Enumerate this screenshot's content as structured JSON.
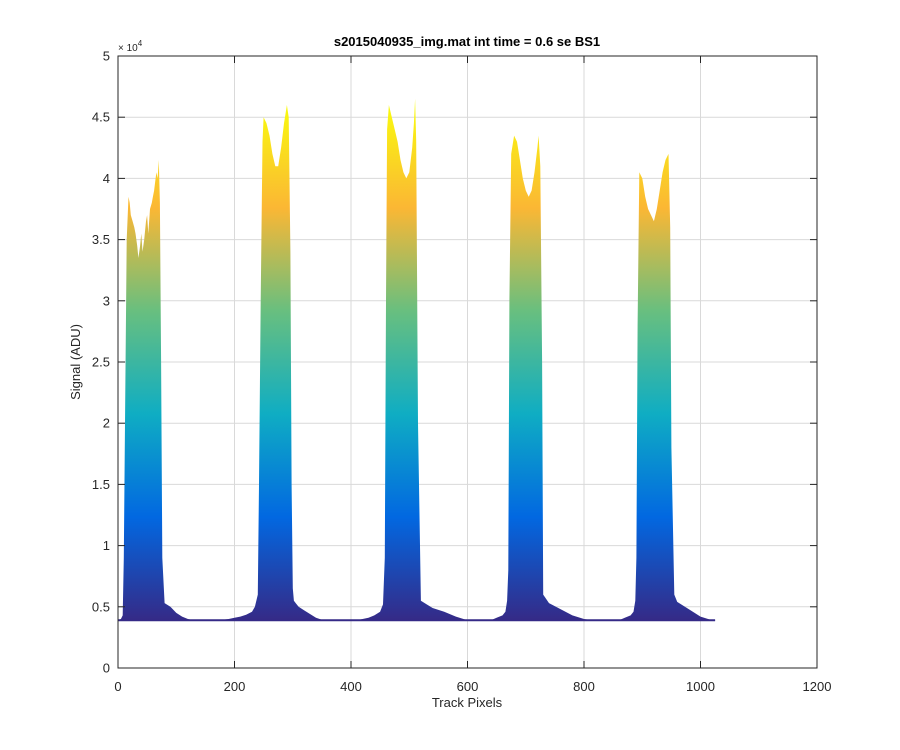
{
  "chart_data": {
    "type": "area",
    "title": "s2015040935_img.mat int time = 0.6 se   BS1",
    "xlabel": "Track Pixels",
    "ylabel": "Signal (ADU)",
    "xlim": [
      0,
      1200
    ],
    "ylim": [
      0,
      50000
    ],
    "xticks": [
      0,
      200,
      400,
      600,
      800,
      1000,
      1200
    ],
    "yticks": [
      0,
      5000,
      10000,
      15000,
      20000,
      25000,
      30000,
      35000,
      40000,
      45000,
      50000
    ],
    "ytick_labels": [
      "0",
      "0.5",
      "1",
      "1.5",
      "2",
      "2.5",
      "3",
      "3.5",
      "4",
      "4.5",
      "5"
    ],
    "y_exponent_label": "× 10",
    "y_exponent_power": "4",
    "grid": true,
    "baseline": 3900,
    "colormap": [
      "#352a87",
      "#0268e1",
      "#0fadc3",
      "#68bf7f",
      "#fbb734",
      "#f9fb0e"
    ],
    "series": [
      {
        "x": [
          0,
          5,
          8,
          10,
          12,
          15,
          18,
          20,
          22,
          25,
          28,
          30,
          33,
          35,
          38,
          40,
          42,
          45,
          48,
          50,
          52,
          55,
          58,
          60,
          62,
          64,
          66,
          68,
          70,
          72,
          74,
          76,
          80,
          90,
          100,
          110,
          120,
          130,
          140,
          150,
          160,
          170,
          180,
          190,
          200,
          210,
          220,
          230,
          235,
          240,
          242,
          245,
          248,
          250,
          255,
          260,
          265,
          270,
          275,
          280,
          285,
          290,
          293,
          296,
          298,
          300,
          302,
          305,
          310,
          320,
          330,
          340,
          350,
          360,
          370,
          380,
          390,
          400,
          410,
          420,
          430,
          440,
          450,
          455,
          458,
          460,
          462,
          465,
          470,
          475,
          480,
          485,
          490,
          495,
          500,
          505,
          508,
          510,
          512,
          515,
          520,
          530,
          540,
          560,
          580,
          600,
          620,
          640,
          650,
          660,
          665,
          668,
          670,
          672,
          675,
          680,
          685,
          690,
          695,
          700,
          705,
          710,
          715,
          720,
          722,
          725,
          728,
          730,
          740,
          760,
          780,
          800,
          820,
          840,
          860,
          870,
          880,
          885,
          888,
          890,
          892,
          895,
          900,
          905,
          910,
          915,
          920,
          925,
          930,
          935,
          940,
          945,
          948,
          950,
          955,
          960,
          980,
          1000,
          1020,
          1025
        ],
        "y": [
          3900,
          4000,
          4300,
          9000,
          20000,
          35000,
          38500,
          38000,
          37000,
          36500,
          36000,
          35500,
          34500,
          33500,
          34500,
          35500,
          34000,
          35000,
          36500,
          37000,
          35500,
          37500,
          38000,
          38500,
          39000,
          39800,
          40500,
          40000,
          41500,
          38000,
          25000,
          9000,
          5300,
          5000,
          4500,
          4200,
          4000,
          3900,
          3850,
          3850,
          3850,
          3900,
          3950,
          4000,
          4100,
          4200,
          4350,
          4600,
          5000,
          6000,
          15000,
          30000,
          43000,
          45000,
          44500,
          43500,
          42000,
          41000,
          41000,
          42500,
          44500,
          46000,
          45000,
          34000,
          15000,
          6500,
          5500,
          5300,
          5000,
          4700,
          4400,
          4100,
          3950,
          3850,
          3850,
          3850,
          3850,
          3850,
          3900,
          4000,
          4100,
          4300,
          4600,
          5200,
          9000,
          30000,
          44000,
          46000,
          45000,
          44000,
          43000,
          41500,
          40500,
          40000,
          40500,
          42500,
          44500,
          46500,
          43000,
          20000,
          5500,
          5200,
          4900,
          4600,
          4200,
          3900,
          3850,
          3900,
          4100,
          4300,
          4600,
          5500,
          8000,
          30000,
          42000,
          43500,
          43000,
          41500,
          40000,
          39000,
          38500,
          39000,
          40500,
          42500,
          43500,
          41000,
          25000,
          6000,
          5300,
          4800,
          4300,
          4000,
          3850,
          3850,
          3900,
          4100,
          4300,
          4600,
          5500,
          9000,
          28000,
          40500,
          40000,
          38500,
          37500,
          37000,
          36500,
          37500,
          39000,
          40500,
          41500,
          42000,
          36000,
          18000,
          6000,
          5400,
          4800,
          4200,
          3900,
          3850
        ]
      }
    ]
  }
}
